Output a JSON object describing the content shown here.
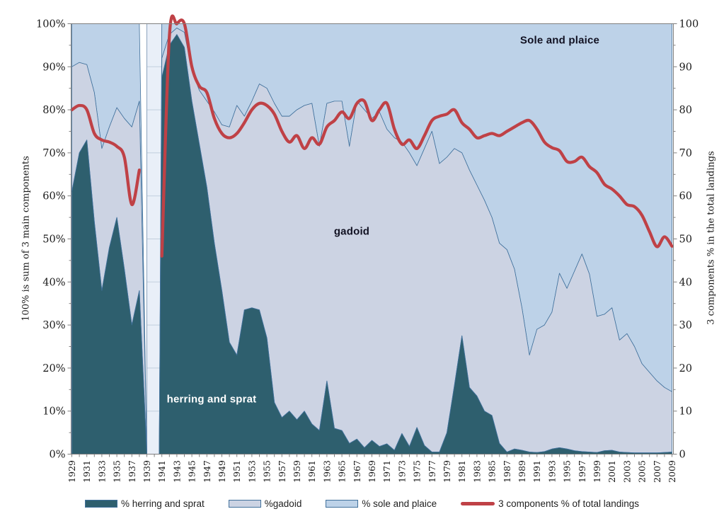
{
  "chart_data": {
    "type": "area",
    "stacking": "percent-stacked-with-overlay-line",
    "x": [
      1929,
      1930,
      1931,
      1932,
      1933,
      1934,
      1935,
      1936,
      1937,
      1938,
      1939,
      1940,
      1941,
      1942,
      1943,
      1944,
      1945,
      1946,
      1947,
      1948,
      1949,
      1950,
      1951,
      1952,
      1953,
      1954,
      1955,
      1956,
      1957,
      1958,
      1959,
      1960,
      1961,
      1962,
      1963,
      1964,
      1965,
      1966,
      1967,
      1968,
      1969,
      1970,
      1971,
      1972,
      1973,
      1974,
      1975,
      1976,
      1977,
      1978,
      1979,
      1980,
      1981,
      1982,
      1983,
      1984,
      1985,
      1986,
      1987,
      1988,
      1989,
      1990,
      1991,
      1992,
      1993,
      1994,
      1995,
      1996,
      1997,
      1998,
      1999,
      2000,
      2001,
      2002,
      2003,
      2004,
      2005,
      2006,
      2007,
      2008,
      2009
    ],
    "x_tick_labels": [
      "1929",
      "1931",
      "1933",
      "1935",
      "1937",
      "1939",
      "1941",
      "1943",
      "1945",
      "1947",
      "1949",
      "1951",
      "1953",
      "1955",
      "1957",
      "1959",
      "1961",
      "1963",
      "1965",
      "1967",
      "1969",
      "1971",
      "1973",
      "1975",
      "1977",
      "1979",
      "1981",
      "1983",
      "1985",
      "1987",
      "1989",
      "1991",
      "1993",
      "1995",
      "1997",
      "1999",
      "2001",
      "2003",
      "2005",
      "2007",
      "2009"
    ],
    "missing_years": [
      1939,
      1940
    ],
    "series": [
      {
        "name": "% herring and sprat",
        "type": "area",
        "color": "#2e5f6e",
        "values": [
          61,
          70,
          73,
          54,
          38,
          48,
          55,
          43,
          30,
          38,
          null,
          null,
          87.5,
          95,
          97.5,
          94.5,
          82,
          72,
          62,
          49,
          38,
          26,
          23,
          33.5,
          34,
          33.5,
          27,
          12,
          8.5,
          10,
          8,
          10,
          7,
          5.5,
          17,
          6,
          5.5,
          2.5,
          3.5,
          1.5,
          3.2,
          1.8,
          2.4,
          0.9,
          4.8,
          1.8,
          6.2,
          2,
          0.5,
          0.5,
          5,
          16,
          27.5,
          15.5,
          13.5,
          10,
          9,
          2.5,
          0.5,
          1.2,
          0.9,
          0.5,
          0.4,
          0.6,
          1.2,
          1.5,
          1.2,
          0.8,
          0.6,
          0.5,
          0.4,
          0.8,
          0.9,
          0.5,
          0.4,
          0.3,
          0.3,
          0.3,
          0.3,
          0.4,
          0.5
        ]
      },
      {
        "name": "%gadoid",
        "type": "area",
        "color": "#ccd3e3",
        "values": [
          29,
          21,
          17.5,
          30,
          33,
          28,
          25.5,
          35,
          46,
          44,
          null,
          null,
          4.5,
          2.5,
          1.5,
          3.5,
          7,
          12.5,
          20,
          30.5,
          38.5,
          50,
          58,
          45,
          48,
          52.5,
          58,
          69.5,
          70,
          68.5,
          72,
          71,
          74.5,
          66,
          64.5,
          76,
          76.5,
          69,
          78.5,
          78.5,
          74.8,
          77.7,
          73.1,
          72.6,
          67.7,
          68.2,
          60.8,
          69,
          74.5,
          67,
          64,
          55,
          42.5,
          50.5,
          49,
          49,
          46,
          46.5,
          47,
          41.8,
          33.1,
          22.5,
          28.6,
          29.4,
          31.8,
          40.5,
          37.3,
          41.7,
          45.9,
          41.3,
          31.6,
          31.7,
          33.1,
          26,
          27.6,
          24.7,
          20.7,
          18.7,
          16.7,
          15.1,
          14
        ]
      },
      {
        "name": "% sole and plaice",
        "type": "area",
        "color": "#bdd2e8",
        "values": [
          10,
          9,
          9.5,
          16,
          29,
          24,
          19.5,
          22,
          24,
          18,
          null,
          null,
          8,
          2.5,
          1,
          2,
          11,
          15.5,
          18,
          20.5,
          23.5,
          24,
          19,
          21.5,
          18,
          14,
          15,
          18.5,
          21.5,
          21.5,
          20,
          19,
          18.5,
          28.5,
          18.5,
          18,
          18,
          28.5,
          18,
          20,
          22,
          20.5,
          24.5,
          26.5,
          27.5,
          30,
          33,
          29,
          25,
          32.5,
          31,
          29,
          30,
          34,
          37.5,
          41,
          45,
          51,
          52.5,
          57,
          66,
          77,
          71,
          70,
          67,
          58,
          61.5,
          57.5,
          53.5,
          58.2,
          68,
          67.5,
          66,
          73.5,
          72,
          75,
          79,
          81,
          83,
          84.5,
          85.5
        ]
      },
      {
        "name": "3 components % of total landings",
        "type": "line",
        "color": "#bf4146",
        "values": [
          80,
          81,
          80,
          74.5,
          73,
          72.5,
          71.5,
          69,
          58,
          66,
          null,
          null,
          46,
          97,
          100,
          100,
          90,
          85.5,
          84,
          78,
          74.5,
          73.5,
          74.5,
          77,
          80,
          81.5,
          81,
          79,
          75,
          72.5,
          74,
          71,
          73.5,
          72,
          76,
          77.5,
          79.5,
          78,
          81.5,
          82,
          77.5,
          80,
          81.5,
          75.5,
          72,
          73,
          71,
          74,
          77.5,
          78.5,
          79,
          80,
          77,
          75.5,
          73.5,
          74,
          74.5,
          74,
          75,
          76,
          77,
          77.5,
          75.5,
          72.5,
          71.2,
          70.5,
          68,
          68,
          69,
          66.8,
          65.4,
          62.7,
          61.6,
          60,
          58,
          57.5,
          55.5,
          51.7,
          48.2,
          50.5,
          48.3
        ]
      }
    ],
    "left_axis": {
      "title": "100% is sum of 3 main components",
      "range": [
        0,
        100
      ],
      "labels": [
        "0%",
        "10%",
        "20%",
        "30%",
        "40%",
        "50%",
        "60%",
        "70%",
        "80%",
        "90%",
        "100%"
      ]
    },
    "right_axis": {
      "title": "3 components % in the total landings",
      "range": [
        0,
        100
      ],
      "labels": [
        "0",
        "10",
        "20",
        "30",
        "40",
        "50",
        "60",
        "70",
        "80",
        "90",
        "100"
      ]
    },
    "annotations": [
      {
        "text": "Sole and plaice"
      },
      {
        "text": "gadoid"
      },
      {
        "text": "herring and sprat"
      }
    ],
    "legend_position": "bottom",
    "grid": "only-visible-in-missing-data-band"
  },
  "colors": {
    "herring": "#2e5f6e",
    "gadoid": "#ccd3e3",
    "sole": "#bdd2e8",
    "red_line": "#bf4146",
    "area_outline": "#41719c",
    "axis": "#7f7f7f",
    "tick_text": "#1a1a1a",
    "gap_band": "#e9eff8",
    "gap_grid": "#c2cfdd",
    "gap_edge": "#8ca3bd"
  }
}
